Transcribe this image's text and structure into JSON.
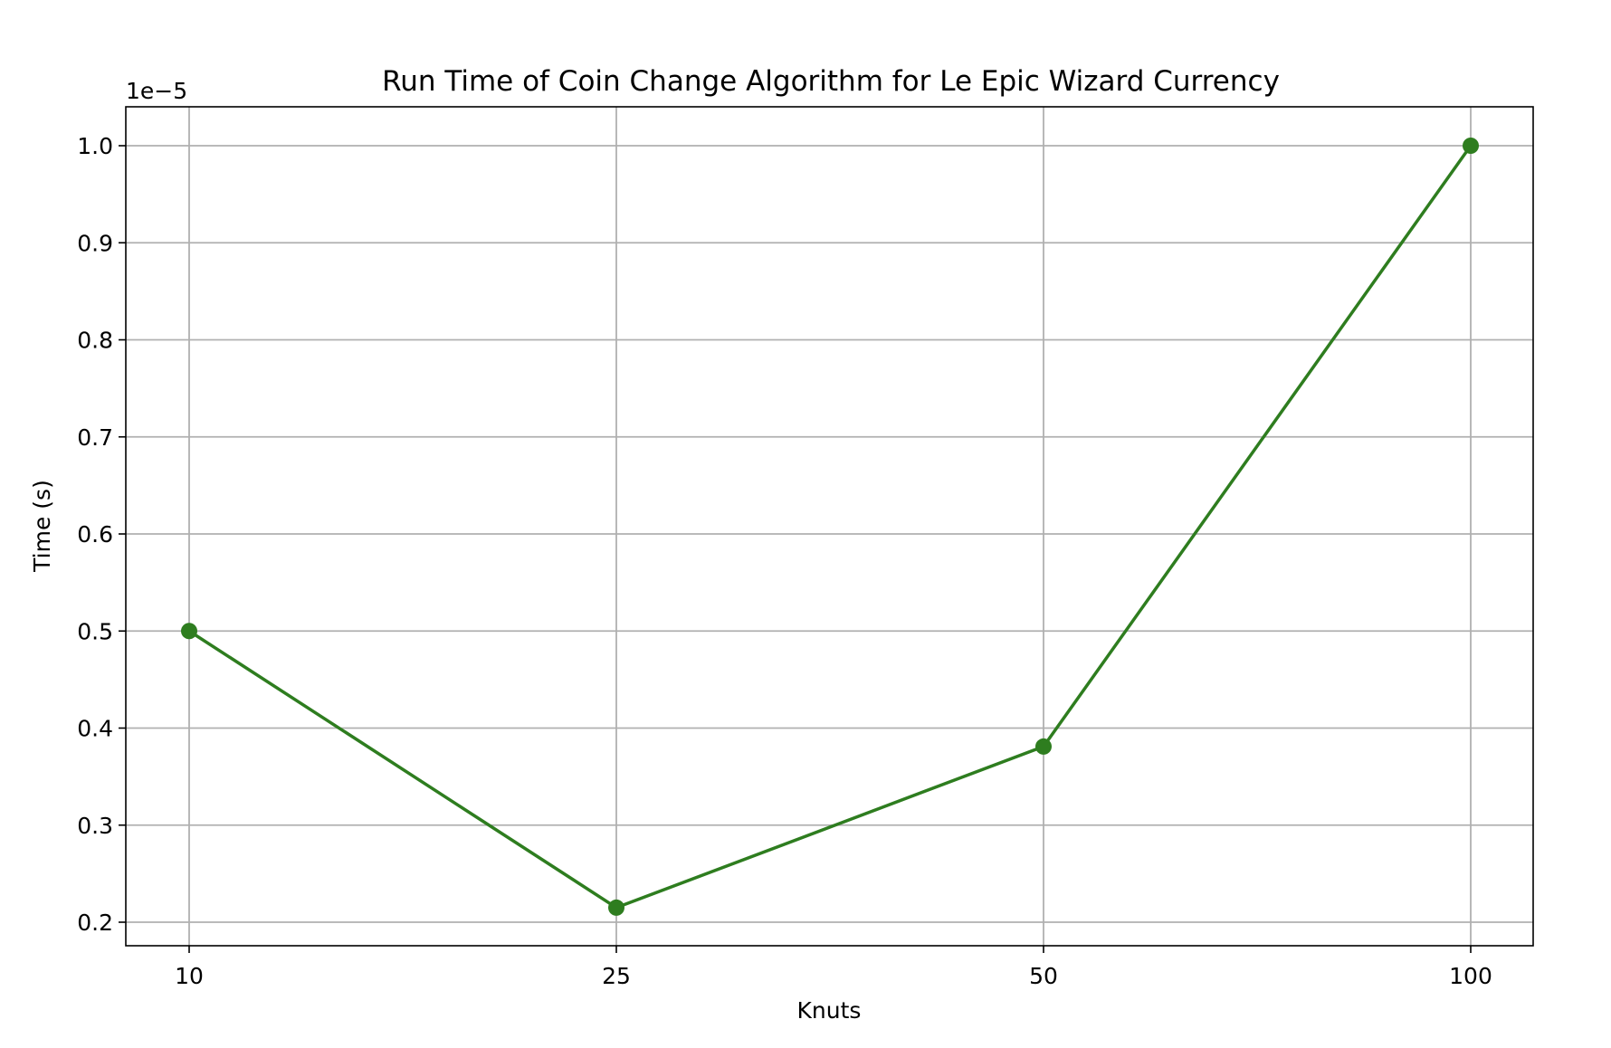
{
  "chart_data": {
    "type": "line",
    "title": "Run Time of Coin Change Algorithm for Le Epic Wizard Currency",
    "xlabel": "Knuts",
    "ylabel": "Time (s)",
    "y_offset_text": "1e−5",
    "categories": [
      "10",
      "25",
      "50",
      "100"
    ],
    "series": [
      {
        "values": [
          0.5,
          0.215,
          0.381,
          1.0
        ],
        "color": "#2e7d1f",
        "marker": "circle"
      }
    ],
    "yticks": [
      "0.2",
      "0.3",
      "0.4",
      "0.5",
      "0.6",
      "0.7",
      "0.8",
      "0.9",
      "1.0"
    ],
    "ylim": [
      0.176,
      1.04
    ],
    "grid": true
  }
}
